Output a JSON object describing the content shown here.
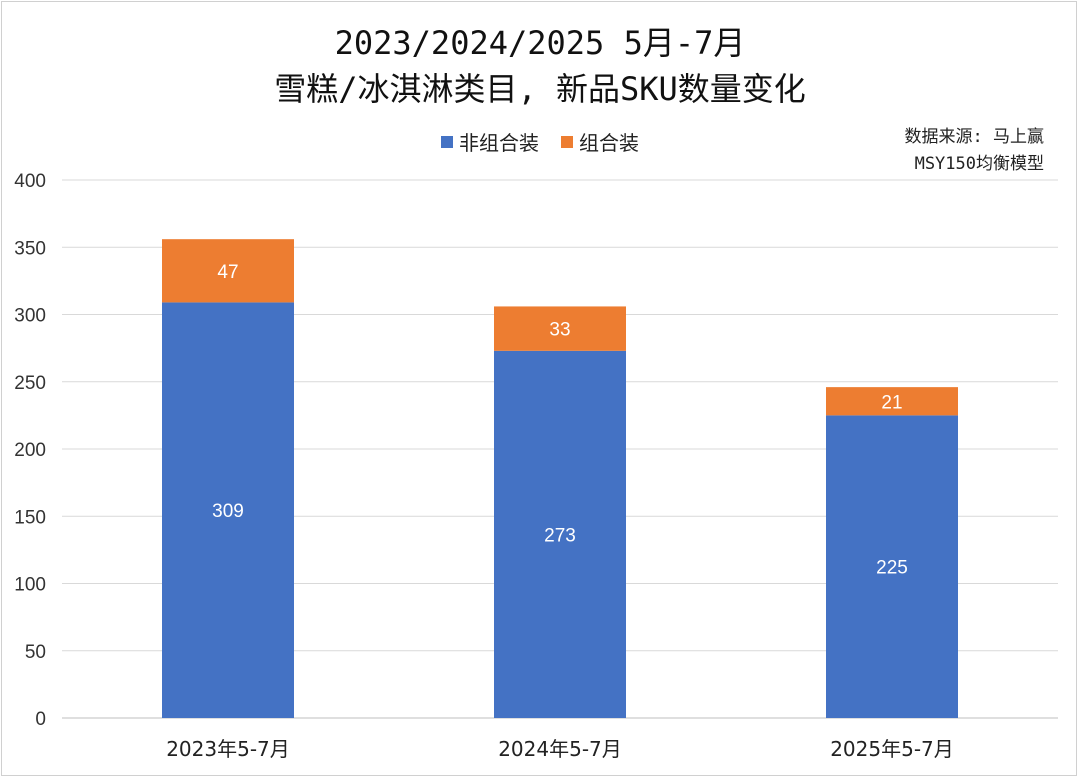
{
  "chart_data": {
    "type": "bar",
    "stacked": true,
    "title_lines": [
      "2023/2024/2025 5月-7月",
      "雪糕/冰淇淋类目, 新品SKU数量变化"
    ],
    "source_lines": [
      "数据来源: 马上赢",
      "MSY150均衡模型"
    ],
    "categories": [
      "2023年5-7月",
      "2024年5-7月",
      "2025年5-7月"
    ],
    "series": [
      {
        "name": "非组合装",
        "values": [
          309,
          273,
          225
        ],
        "color": "#4472C4"
      },
      {
        "name": "组合装",
        "values": [
          47,
          33,
          21
        ],
        "color": "#ED7D31"
      }
    ],
    "ylim": [
      0,
      400
    ],
    "yticks": [
      0,
      50,
      100,
      150,
      200,
      250,
      300,
      350,
      400
    ],
    "grid": true,
    "legend_position": "top"
  }
}
